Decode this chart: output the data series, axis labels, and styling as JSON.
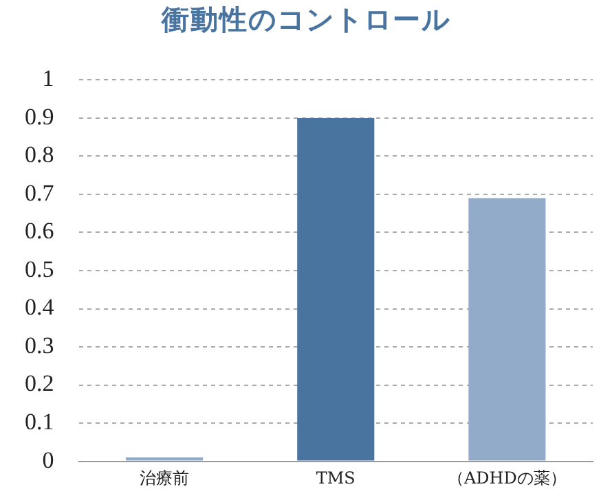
{
  "chart_data": {
    "type": "bar",
    "title": "衝動性のコントロール",
    "categories": [
      "治療前",
      "TMS",
      "（ADHDの薬）"
    ],
    "values": [
      0.01,
      0.9,
      0.69
    ],
    "colors": [
      "#91abc8",
      "#4a74a0",
      "#91abc8"
    ],
    "ylim": [
      0,
      1
    ],
    "yticks": [
      0,
      0.1,
      0.2,
      0.3,
      0.4,
      0.5,
      0.6,
      0.7,
      0.8,
      0.9,
      1
    ],
    "grid": "y",
    "legend": false
  }
}
